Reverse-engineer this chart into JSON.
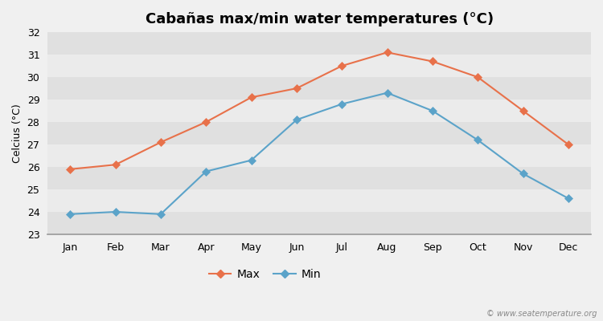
{
  "title": "Cabañas max/min water temperatures (°C)",
  "ylabel": "Celcius (°C)",
  "months": [
    "Jan",
    "Feb",
    "Mar",
    "Apr",
    "May",
    "Jun",
    "Jul",
    "Aug",
    "Sep",
    "Oct",
    "Nov",
    "Dec"
  ],
  "max_temps": [
    25.9,
    26.1,
    27.1,
    28.0,
    29.1,
    29.5,
    30.5,
    31.1,
    30.7,
    30.0,
    28.5,
    27.0
  ],
  "min_temps": [
    23.9,
    24.0,
    23.9,
    25.8,
    26.3,
    28.1,
    28.8,
    29.3,
    28.5,
    27.2,
    25.7,
    24.6
  ],
  "max_color": "#e8714a",
  "min_color": "#5ba3c9",
  "bg_color": "#f0f0f0",
  "band_light": "#ebebeb",
  "band_dark": "#e0e0e0",
  "ylim": [
    23,
    32
  ],
  "yticks": [
    23,
    24,
    25,
    26,
    27,
    28,
    29,
    30,
    31,
    32
  ],
  "legend_labels": [
    "Max",
    "Min"
  ],
  "watermark": "© www.seatemperature.org",
  "title_fontsize": 13,
  "axis_fontsize": 9,
  "tick_fontsize": 9
}
